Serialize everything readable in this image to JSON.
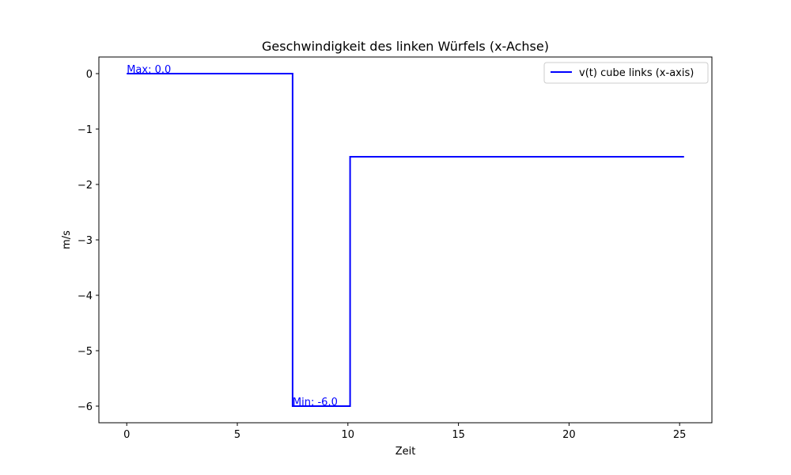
{
  "chart_data": {
    "type": "line",
    "title": "Geschwindigkeit des linken Würfels (x-Achse)",
    "xlabel": "Zeit",
    "ylabel": "m/s",
    "xlim": [
      -1.26,
      26.46
    ],
    "ylim": [
      -6.3,
      0.3
    ],
    "xticks": [
      0,
      5,
      10,
      15,
      20,
      25
    ],
    "xtick_labels": [
      "0",
      "5",
      "10",
      "15",
      "20",
      "25"
    ],
    "yticks": [
      0,
      -1,
      -2,
      -3,
      -4,
      -5,
      -6
    ],
    "ytick_labels": [
      "0",
      "−1",
      "−2",
      "−3",
      "−4",
      "−5",
      "−6"
    ],
    "grid": false,
    "legend_position": "top-right",
    "series": [
      {
        "name": "v(t) cube links (x-axis)",
        "color": "#0000ff",
        "x": [
          0,
          7.5,
          7.5,
          10.1,
          10.1,
          25.2
        ],
        "y": [
          0,
          0,
          -6.0,
          -6.0,
          -1.5,
          -1.5
        ]
      }
    ],
    "annotations": [
      {
        "text": "Max: 0.0",
        "x": 0,
        "y": 0,
        "color": "#0000ff"
      },
      {
        "text": "Min: -6.0",
        "x": 7.5,
        "y": -6.0,
        "color": "#0000ff"
      }
    ]
  }
}
